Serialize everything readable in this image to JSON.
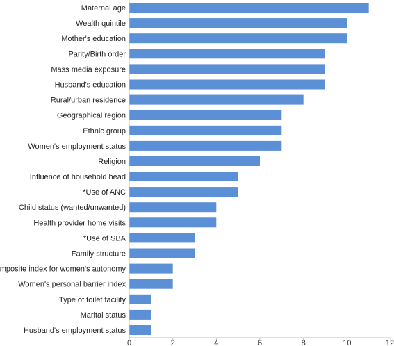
{
  "chart_data": {
    "type": "bar",
    "orientation": "horizontal",
    "title": "",
    "xlabel": "",
    "ylabel": "",
    "categories": [
      "Maternal age",
      "Wealth quintile",
      "Mother's education",
      "Parity/Birth order",
      "Mass media exposure",
      "Husband's education",
      "Rural/urban residence",
      "Geographical region",
      "Ethnic group",
      "Women's employment status",
      "Religion",
      "Influence of household head",
      "*Use of ANC",
      "Child status (wanted/unwanted)",
      "Health provider home visits",
      "*Use of SBA",
      "Family structure",
      "Composite index for women's autonomy",
      "Women's personal barrier index",
      "Type of toilet facility",
      "Marital status",
      "Husband's employment status"
    ],
    "values": [
      11,
      10,
      10,
      9,
      9,
      9,
      8,
      7,
      7,
      7,
      6,
      5,
      5,
      4,
      4,
      3,
      3,
      2,
      2,
      1,
      1,
      1
    ],
    "xlim": [
      0,
      12
    ],
    "xticks": [
      0,
      2,
      4,
      6,
      8,
      10,
      12
    ],
    "grid": false,
    "legend": "none",
    "bar_color": "#5b8fd6",
    "axis_color": "#bfbfbf"
  }
}
